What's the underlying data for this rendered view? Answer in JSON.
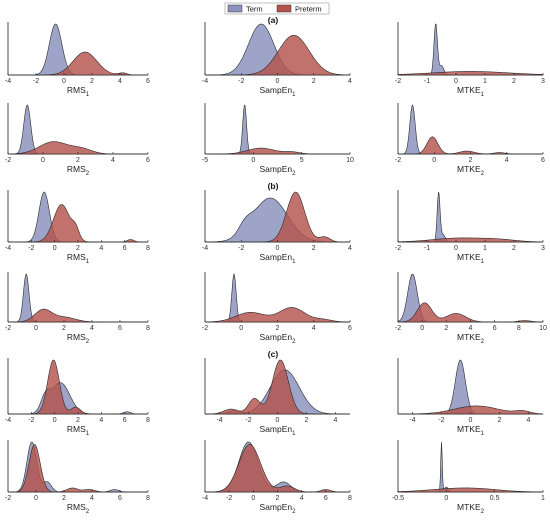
{
  "legend": {
    "items": [
      {
        "label": "Term",
        "color": "#8C94BD"
      },
      {
        "label": "Preterm",
        "color": "#B5534C"
      }
    ]
  },
  "group_labels": [
    "(a)",
    "(b)",
    "(c)"
  ],
  "chart_data": [
    {
      "type": "area",
      "group": "(a)",
      "row": 1,
      "col": 1,
      "xlabel": "RMS",
      "sub": "1",
      "xlim": [
        -4,
        6
      ],
      "ticks": [
        "-4",
        "-2",
        "0",
        "2",
        "4",
        "6"
      ],
      "series": [
        {
          "name": "Term",
          "peaks": [
            [
              -0.6,
              1.0,
              0.45
            ],
            [
              4.0,
              0.02,
              0.3
            ]
          ]
        },
        {
          "name": "Preterm",
          "peaks": [
            [
              1.5,
              0.45,
              0.85
            ],
            [
              4.2,
              0.04,
              0.3
            ]
          ]
        }
      ]
    },
    {
      "type": "area",
      "group": "(a)",
      "row": 1,
      "col": 2,
      "xlabel": "SampEn",
      "sub": "1",
      "xlim": [
        -4,
        4
      ],
      "ticks": [
        "-4",
        "-2",
        "0",
        "2",
        "4"
      ],
      "series": [
        {
          "name": "Term",
          "peaks": [
            [
              -0.9,
              1.0,
              0.7
            ]
          ]
        },
        {
          "name": "Preterm",
          "peaks": [
            [
              0.9,
              0.78,
              0.85
            ]
          ]
        }
      ]
    },
    {
      "type": "area",
      "group": "(a)",
      "row": 1,
      "col": 3,
      "xlabel": "MTKE",
      "sub": "1",
      "xlim": [
        -2,
        3
      ],
      "ticks": [
        "-2",
        "-1",
        "0",
        "1",
        "2",
        "3"
      ],
      "series": [
        {
          "name": "Term",
          "peaks": [
            [
              -0.7,
              1.0,
              0.06
            ],
            [
              -0.5,
              0.18,
              0.08
            ]
          ]
        },
        {
          "name": "Preterm",
          "peaks": [
            [
              0.5,
              0.07,
              1.3
            ]
          ]
        }
      ]
    },
    {
      "type": "area",
      "group": "(a)",
      "row": 2,
      "col": 1,
      "xlabel": "RMS",
      "sub": "2",
      "xlim": [
        -2,
        6
      ],
      "ticks": [
        "-2",
        "0",
        "2",
        "4",
        "6"
      ],
      "series": [
        {
          "name": "Term",
          "peaks": [
            [
              -0.9,
              1.0,
              0.2
            ]
          ]
        },
        {
          "name": "Preterm",
          "peaks": [
            [
              0.6,
              0.25,
              0.8
            ],
            [
              2.2,
              0.1,
              0.6
            ]
          ]
        }
      ]
    },
    {
      "type": "area",
      "group": "(a)",
      "row": 2,
      "col": 2,
      "xlabel": "SampEn",
      "sub": "2",
      "xlim": [
        -5,
        10
      ],
      "ticks": [
        "-5",
        "0",
        "5",
        "10"
      ],
      "series": [
        {
          "name": "Term",
          "peaks": [
            [
              -0.9,
              1.0,
              0.2
            ]
          ]
        },
        {
          "name": "Preterm",
          "peaks": [
            [
              0.8,
              0.12,
              1.4
            ],
            [
              4.0,
              0.04,
              0.8
            ]
          ]
        }
      ]
    },
    {
      "type": "area",
      "group": "(a)",
      "row": 2,
      "col": 3,
      "xlabel": "MTKE",
      "sub": "2",
      "xlim": [
        -2,
        6
      ],
      "ticks": [
        "-2",
        "0",
        "2",
        "4",
        "6"
      ],
      "series": [
        {
          "name": "Term",
          "peaks": [
            [
              -1.2,
              1.0,
              0.15
            ]
          ]
        },
        {
          "name": "Preterm",
          "peaks": [
            [
              -0.1,
              0.35,
              0.3
            ],
            [
              1.8,
              0.06,
              0.4
            ],
            [
              3.6,
              0.03,
              0.3
            ]
          ]
        }
      ]
    },
    {
      "type": "area",
      "group": "(b)",
      "row": 3,
      "col": 1,
      "xlabel": "RMS",
      "sub": "1",
      "xlim": [
        -4,
        8
      ],
      "ticks": [
        "-4",
        "-2",
        "0",
        "2",
        "4",
        "6",
        "8"
      ],
      "series": [
        {
          "name": "Term",
          "peaks": [
            [
              -0.9,
              1.0,
              0.45
            ]
          ]
        },
        {
          "name": "Preterm",
          "peaks": [
            [
              0.6,
              0.75,
              0.7
            ],
            [
              1.8,
              0.2,
              0.3
            ],
            [
              6.5,
              0.05,
              0.3
            ]
          ]
        }
      ]
    },
    {
      "type": "area",
      "group": "(b)",
      "row": 3,
      "col": 2,
      "xlabel": "SampEn",
      "sub": "1",
      "xlim": [
        -4,
        4
      ],
      "ticks": [
        "-4",
        "-2",
        "0",
        "2",
        "4"
      ],
      "series": [
        {
          "name": "Term",
          "peaks": [
            [
              -0.4,
              0.88,
              0.95
            ],
            [
              -1.8,
              0.18,
              0.35
            ]
          ]
        },
        {
          "name": "Preterm",
          "peaks": [
            [
              1.0,
              1.0,
              0.5
            ],
            [
              2.6,
              0.1,
              0.3
            ]
          ]
        }
      ]
    },
    {
      "type": "area",
      "group": "(b)",
      "row": 3,
      "col": 3,
      "xlabel": "MTKE",
      "sub": "1",
      "xlim": [
        -2,
        3
      ],
      "ticks": [
        "-2",
        "-1",
        "0",
        "1",
        "2",
        "3"
      ],
      "series": [
        {
          "name": "Term",
          "peaks": [
            [
              -0.6,
              1.0,
              0.05
            ],
            [
              -0.45,
              0.15,
              0.08
            ]
          ]
        },
        {
          "name": "Preterm",
          "peaks": [
            [
              0.1,
              0.08,
              0.9
            ],
            [
              1.5,
              0.04,
              0.6
            ]
          ]
        }
      ]
    },
    {
      "type": "area",
      "group": "(b)",
      "row": 4,
      "col": 1,
      "xlabel": "RMS",
      "sub": "2",
      "xlim": [
        -2,
        8
      ],
      "ticks": [
        "-2",
        "0",
        "2",
        "4",
        "6",
        "8"
      ],
      "series": [
        {
          "name": "Term",
          "peaks": [
            [
              -0.7,
              1.0,
              0.2
            ]
          ]
        },
        {
          "name": "Preterm",
          "peaks": [
            [
              0.5,
              0.25,
              0.6
            ],
            [
              2.0,
              0.1,
              0.8
            ]
          ]
        }
      ]
    },
    {
      "type": "area",
      "group": "(b)",
      "row": 4,
      "col": 2,
      "xlabel": "SampEn",
      "sub": "2",
      "xlim": [
        -2,
        6
      ],
      "ticks": [
        "-2",
        "0",
        "2",
        "4",
        "6"
      ],
      "series": [
        {
          "name": "Term",
          "peaks": [
            [
              -0.4,
              1.0,
              0.12
            ]
          ]
        },
        {
          "name": "Preterm",
          "peaks": [
            [
              0.5,
              0.2,
              0.8
            ],
            [
              2.8,
              0.3,
              0.7
            ],
            [
              4.5,
              0.05,
              0.5
            ]
          ]
        }
      ]
    },
    {
      "type": "area",
      "group": "(b)",
      "row": 4,
      "col": 3,
      "xlabel": "MTKE",
      "sub": "2",
      "xlim": [
        -2,
        10
      ],
      "ticks": [
        "-2",
        "0",
        "2",
        "4",
        "6",
        "8",
        "10"
      ],
      "series": [
        {
          "name": "Term",
          "peaks": [
            [
              -0.8,
              1.0,
              0.4
            ]
          ]
        },
        {
          "name": "Preterm",
          "peaks": [
            [
              0.2,
              0.4,
              0.6
            ],
            [
              2.8,
              0.18,
              0.8
            ],
            [
              8.5,
              0.03,
              0.5
            ]
          ]
        }
      ]
    },
    {
      "type": "area",
      "group": "(c)",
      "row": 5,
      "col": 1,
      "xlabel": "RMS",
      "sub": "1",
      "xlim": [
        -4,
        8
      ],
      "ticks": [
        "-4",
        "-2",
        "0",
        "2",
        "4",
        "6",
        "8"
      ],
      "series": [
        {
          "name": "Term",
          "peaks": [
            [
              0.5,
              0.55,
              0.8
            ],
            [
              -0.8,
              0.25,
              0.4
            ],
            [
              6.2,
              0.04,
              0.3
            ]
          ]
        },
        {
          "name": "Preterm",
          "peaks": [
            [
              -0.1,
              0.95,
              0.5
            ],
            [
              1.8,
              0.12,
              0.4
            ]
          ]
        }
      ]
    },
    {
      "type": "area",
      "group": "(c)",
      "row": 5,
      "col": 2,
      "xlabel": "SampEn",
      "sub": "1",
      "xlim": [
        -5,
        5
      ],
      "ticks": [
        "-4",
        "-2",
        "0",
        "2",
        "4"
      ],
      "series": [
        {
          "name": "Term",
          "peaks": [
            [
              0.5,
              0.72,
              1.0
            ],
            [
              -3.0,
              0.05,
              0.4
            ]
          ]
        },
        {
          "name": "Preterm",
          "peaks": [
            [
              0.2,
              0.88,
              0.55
            ],
            [
              -1.6,
              0.25,
              0.4
            ],
            [
              -3.2,
              0.08,
              0.5
            ]
          ]
        }
      ]
    },
    {
      "type": "area",
      "group": "(c)",
      "row": 5,
      "col": 3,
      "xlabel": "MTKE",
      "sub": "1",
      "xlim": [
        -5,
        5
      ],
      "ticks": [
        "-4",
        "-2",
        "0",
        "2",
        "4"
      ],
      "series": [
        {
          "name": "Term",
          "peaks": [
            [
              -0.7,
              1.0,
              0.35
            ]
          ]
        },
        {
          "name": "Preterm",
          "peaks": [
            [
              0.4,
              0.15,
              1.5
            ],
            [
              3.6,
              0.05,
              0.5
            ]
          ]
        }
      ]
    },
    {
      "type": "area",
      "group": "(c)",
      "row": 6,
      "col": 1,
      "xlabel": "RMS",
      "sub": "2",
      "xlim": [
        -2,
        8
      ],
      "ticks": [
        "-2",
        "0",
        "2",
        "4",
        "6",
        "8"
      ],
      "series": [
        {
          "name": "Term",
          "peaks": [
            [
              -0.3,
              1.0,
              0.35
            ],
            [
              0.8,
              0.2,
              0.3
            ],
            [
              5.6,
              0.05,
              0.3
            ]
          ]
        },
        {
          "name": "Preterm",
          "peaks": [
            [
              -0.1,
              0.95,
              0.4
            ],
            [
              2.6,
              0.08,
              0.4
            ],
            [
              3.8,
              0.05,
              0.4
            ]
          ]
        }
      ]
    },
    {
      "type": "area",
      "group": "(c)",
      "row": 6,
      "col": 2,
      "xlabel": "SampEn",
      "sub": "2",
      "xlim": [
        -4,
        8
      ],
      "ticks": [
        "-4",
        "-2",
        "0",
        "2",
        "4",
        "6",
        "8"
      ],
      "series": [
        {
          "name": "Term",
          "peaks": [
            [
              -0.4,
              1.0,
              0.8
            ],
            [
              2.5,
              0.2,
              0.6
            ]
          ]
        },
        {
          "name": "Preterm",
          "peaks": [
            [
              -0.3,
              0.95,
              0.9
            ],
            [
              2.8,
              0.12,
              0.6
            ],
            [
              6.0,
              0.05,
              0.4
            ]
          ]
        }
      ]
    },
    {
      "type": "area",
      "group": "(c)",
      "row": 6,
      "col": 3,
      "xlabel": "MTKE",
      "sub": "2",
      "xlim": [
        -0.5,
        1
      ],
      "ticks": [
        "-0.5",
        "0",
        "0.5",
        "1"
      ],
      "series": [
        {
          "name": "Term",
          "peaks": [
            [
              -0.05,
              1.0,
              0.008
            ],
            [
              0.0,
              0.1,
              0.02
            ]
          ]
        },
        {
          "name": "Preterm",
          "peaks": [
            [
              0.1,
              0.06,
              0.3
            ],
            [
              0.35,
              0.03,
              0.25
            ]
          ]
        }
      ]
    }
  ]
}
